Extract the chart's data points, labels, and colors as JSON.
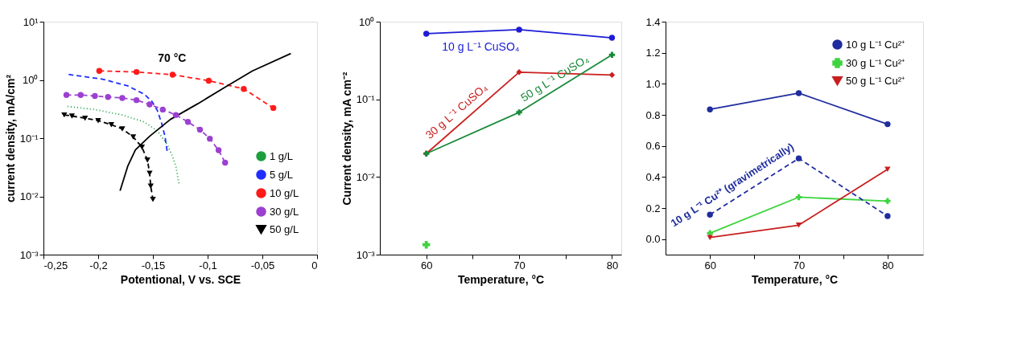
{
  "chart_data": [
    {
      "type": "line",
      "annotations": [
        "70 °C"
      ],
      "xlabel": "Potentional, V vs. SCE",
      "ylabel": "current density, mA/cm²",
      "log": "y",
      "grid": false,
      "legend": "bottom right",
      "xlim": [
        -0.25,
        0
      ],
      "xticks": [
        {
          "value": -0.25,
          "label": "-0,25"
        },
        {
          "value": -0.2,
          "label": "-0,2"
        },
        {
          "value": -0.15,
          "label": "-0,15"
        },
        {
          "value": -0.1,
          "label": "-0,1"
        },
        {
          "value": -0.05,
          "label": "-0,05"
        },
        0
      ],
      "ylim": [
        0.001,
        10
      ],
      "yticks": [
        {
          "value": 0.001,
          "label": "10⁻³"
        },
        {
          "value": 0.01,
          "label": "10⁻²"
        },
        {
          "value": 0.1,
          "label": "10⁻¹"
        },
        {
          "value": 1,
          "label": "10⁰"
        },
        {
          "value": 10,
          "label": "10¹"
        }
      ],
      "series": [
        {
          "name": "1 g/L",
          "color": "#1e9e3e",
          "line_style": "dotted",
          "marker": "none",
          "x": [
            -0.228,
            -0.203,
            -0.178,
            -0.158,
            -0.146,
            -0.137,
            -0.132,
            -0.129,
            -0.127,
            -0.126
          ],
          "values": [
            0.35,
            0.31,
            0.25,
            0.19,
            0.134,
            0.078,
            0.048,
            0.033,
            0.02,
            0.016
          ]
        },
        {
          "name": "5 g/L",
          "color": "#1f2eff",
          "line_style": "dashed",
          "marker": "none",
          "x": [
            -0.227,
            -0.196,
            -0.173,
            -0.158,
            -0.151,
            -0.146,
            -0.142,
            -0.139,
            -0.137
          ],
          "values": [
            1.24,
            1.03,
            0.79,
            0.57,
            0.43,
            0.3,
            0.18,
            0.108,
            0.06
          ]
        },
        {
          "name": "10 g/L",
          "color": "#ff1a1a",
          "line_style": "dashed",
          "marker": "circle",
          "x": [
            -0.199,
            -0.165,
            -0.132,
            -0.099,
            -0.067,
            -0.04
          ],
          "values": [
            1.43,
            1.37,
            1.23,
            0.97,
            0.7,
            0.33
          ]
        },
        {
          "name": "30 g/L",
          "color": "#9b40d0",
          "line_style": "dashed",
          "marker": "circle",
          "x": [
            -0.229,
            -0.216,
            -0.203,
            -0.191,
            -0.178,
            -0.165,
            -0.153,
            -0.141,
            -0.129,
            -0.118,
            -0.107,
            -0.098,
            -0.09,
            -0.084
          ],
          "values": [
            0.55,
            0.55,
            0.53,
            0.51,
            0.49,
            0.45,
            0.38,
            0.31,
            0.25,
            0.19,
            0.14,
            0.098,
            0.062,
            0.038
          ]
        },
        {
          "name": "50 g/L",
          "color": "#000000",
          "line_style": "dashed",
          "marker": "triangle",
          "x": [
            -0.231,
            -0.224,
            -0.212,
            -0.2,
            -0.188,
            -0.178,
            -0.168,
            -0.16,
            -0.155,
            -0.153,
            -0.152,
            -0.15
          ],
          "values": [
            0.25,
            0.24,
            0.22,
            0.2,
            0.17,
            0.144,
            0.105,
            0.07,
            0.042,
            0.025,
            0.015,
            0.0089
          ]
        },
        {
          "color": "#000000",
          "line_style": "solid",
          "marker": "none",
          "x": [
            -0.18,
            -0.173,
            -0.166,
            -0.153,
            -0.134,
            -0.109,
            -0.084,
            -0.059,
            -0.024
          ],
          "values": [
            0.0125,
            0.033,
            0.063,
            0.108,
            0.21,
            0.39,
            0.75,
            1.43,
            2.84
          ]
        }
      ]
    },
    {
      "type": "line",
      "xlabel": "Temperature, °C",
      "ylabel": "Current density, mA cm⁻²",
      "log": "y",
      "grid": false,
      "legend": false,
      "x": [
        60,
        70,
        80
      ],
      "xlim": [
        55,
        81
      ],
      "xticks": [
        60,
        {
          "value": 65,
          "label": null
        },
        70,
        {
          "value": 75,
          "label": null
        },
        80
      ],
      "ylim": [
        0.001,
        1
      ],
      "yticks": [
        {
          "value": 0.001,
          "label": "10⁻³"
        },
        {
          "value": 0.01,
          "label": "10⁻²"
        },
        {
          "value": 0.1,
          "label": "10⁻¹"
        },
        {
          "value": 1,
          "label": "10⁰"
        }
      ],
      "series": [
        {
          "name": "10 g L⁻¹ CuSO₄",
          "color": "#1c1cd6",
          "marker": "circle",
          "values": [
            0.7,
            0.79,
            0.62
          ]
        },
        {
          "name": "30 g L⁻¹ CuSO₄",
          "color": "#cc1f1f",
          "marker": "diamond",
          "values": [
            0.02,
            0.224,
            0.206
          ]
        },
        {
          "name": "50 g L⁻¹ CuSO₄",
          "color": "#1a8a3a",
          "marker": "cross",
          "values": [
            0.02,
            0.068,
            0.375
          ]
        },
        {
          "type": "scatter",
          "color": "#3fd43f",
          "marker": "cross",
          "x": [
            60
          ],
          "values": [
            0.00134
          ]
        }
      ]
    },
    {
      "type": "line",
      "xlabel": "Temperature, °C",
      "grid": false,
      "legend": "top right",
      "annotations": [
        {
          "text": "10 g L⁻¹ Cu²⁺ (gravimetrically)",
          "x": 65,
          "y": 0.34
        }
      ],
      "x": [
        60,
        70,
        80
      ],
      "xlim": [
        55,
        84
      ],
      "xticks": [
        60,
        {
          "value": 65,
          "label": null
        },
        70,
        {
          "value": 75,
          "label": null
        },
        80
      ],
      "ylim": [
        -0.1,
        1.4
      ],
      "yticks": [
        {
          "value": 0,
          "label": "0.0"
        },
        0.2,
        0.4,
        0.6,
        0.8,
        {
          "value": 1,
          "label": "1.0"
        },
        1.2,
        1.4
      ],
      "series": [
        {
          "name": "10 g L⁻¹ Cu²⁺",
          "color": "#1f2d9e",
          "marker": "circle",
          "line_style": "solid",
          "values": [
            0.835,
            0.94,
            0.74
          ]
        },
        {
          "name": "30 g L⁻¹ Cu²⁺",
          "color": "#3fd43f",
          "marker": "cross",
          "line_style": "solid",
          "values": [
            0.038,
            0.27,
            0.245
          ]
        },
        {
          "name": "50 g L⁻¹ Cu²⁺",
          "color": "#c81e1e",
          "marker": "triangle",
          "line_style": "solid",
          "values": [
            0.01,
            0.09,
            0.45
          ]
        },
        {
          "color": "#1f2d9e",
          "marker": "circle",
          "line_style": "dashed",
          "values": [
            0.157,
            0.52,
            0.148
          ]
        }
      ]
    }
  ]
}
